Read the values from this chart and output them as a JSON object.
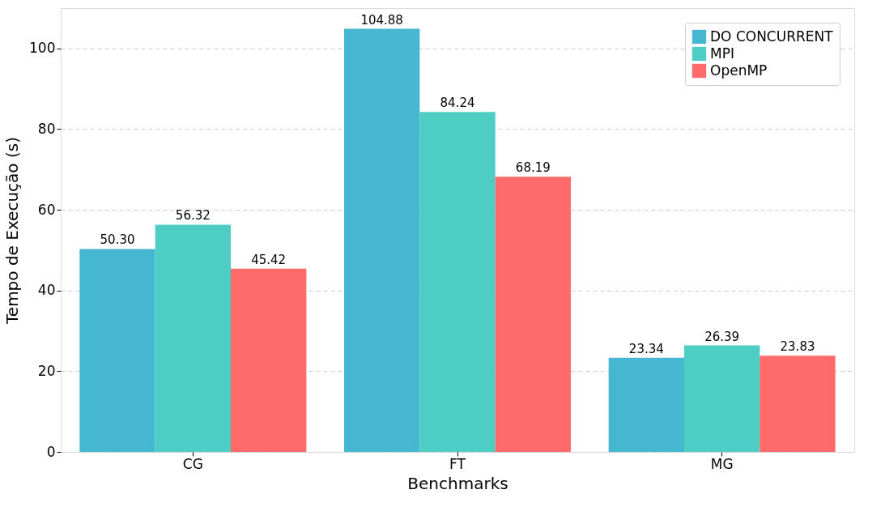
{
  "chart_data": {
    "type": "bar",
    "xlabel": "Benchmarks",
    "ylabel": "Tempo de Execução (s)",
    "categories": [
      "CG",
      "FT",
      "MG"
    ],
    "series": [
      {
        "name": "DO CONCURRENT",
        "color": "#45b7d1",
        "values": [
          50.3,
          104.88,
          23.34
        ],
        "value_labels": [
          "50.30",
          "104.88",
          "23.34"
        ]
      },
      {
        "name": "MPI",
        "color": "#4ecdc4",
        "values": [
          56.32,
          84.24,
          26.39
        ],
        "value_labels": [
          "56.32",
          "84.24",
          "26.39"
        ]
      },
      {
        "name": "OpenMP",
        "color": "#ff6b6b",
        "values": [
          45.42,
          68.19,
          23.83
        ],
        "value_labels": [
          "45.42",
          "68.19",
          "23.83"
        ]
      }
    ],
    "ylim": [
      0,
      110
    ],
    "yticks": [
      0,
      20,
      40,
      60,
      80,
      100
    ],
    "grid": "y",
    "legend": "top right"
  }
}
